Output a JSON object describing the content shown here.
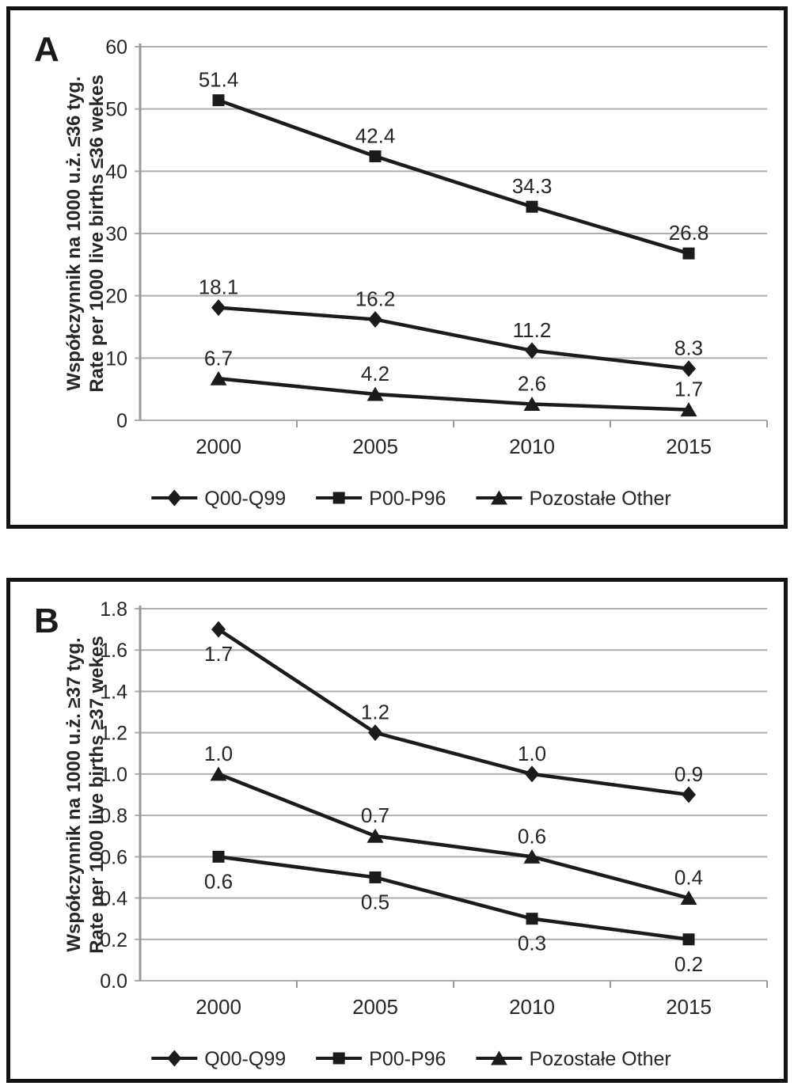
{
  "figure": {
    "description_labels": {
      "panel_a": "A",
      "panel_b": "B"
    }
  },
  "theme": {
    "background": "#ffffff",
    "panel_border": "#141414",
    "grid_color": "#aeaeae",
    "axis_color": "#9a9a9a",
    "series_color": "#1b1b1b",
    "text_color": "#262626"
  },
  "chart_data": [
    {
      "type": "line",
      "panel_label": "A",
      "title": "",
      "xlabel": "",
      "ylabel_lines": [
        "Współczynnik na 1000 u.ż. ≤36 tyg.",
        "Rate per 1000 live births ≤36 wekes"
      ],
      "categories": [
        "2000",
        "2005",
        "2010",
        "2015"
      ],
      "series": [
        {
          "name": "Q00-Q99",
          "marker": "diamond",
          "values": [
            18.1,
            16.2,
            11.2,
            8.3
          ],
          "labels": [
            "18.1",
            "16.2",
            "11.2",
            "8.3"
          ],
          "label_positions": [
            "above",
            "above",
            "above",
            "above"
          ]
        },
        {
          "name": "P00-P96",
          "marker": "square",
          "values": [
            51.4,
            42.4,
            34.3,
            26.8
          ],
          "labels": [
            "51.4",
            "42.4",
            "34.3",
            "26.8"
          ],
          "label_positions": [
            "above",
            "above",
            "above",
            "above"
          ]
        },
        {
          "name": "Pozostałe Other",
          "marker": "triangle",
          "values": [
            6.7,
            4.2,
            2.6,
            1.7
          ],
          "labels": [
            "6.7",
            "4.2",
            "2.6",
            "1.7"
          ],
          "label_positions": [
            "above",
            "above",
            "above",
            "above"
          ]
        }
      ],
      "ylim": [
        0,
        60
      ],
      "ytick_step": 10,
      "ytick_labels": [
        "0",
        "10",
        "20",
        "30",
        "40",
        "50",
        "60"
      ],
      "grid": true,
      "legend_position": "bottom"
    },
    {
      "type": "line",
      "panel_label": "B",
      "title": "",
      "xlabel": "",
      "ylabel_lines": [
        "Współczynnik na 1000 u.ż. ≥37 tyg.",
        "Rate per 1000 live births ≥37 wekes"
      ],
      "categories": [
        "2000",
        "2005",
        "2010",
        "2015"
      ],
      "series": [
        {
          "name": "Q00-Q99",
          "marker": "diamond",
          "values": [
            1.7,
            1.2,
            1.0,
            0.9
          ],
          "labels": [
            "1.7",
            "1.2",
            "1.0",
            "0.9"
          ],
          "label_positions": [
            "below",
            "above",
            "above",
            "above"
          ]
        },
        {
          "name": "P00-P96",
          "marker": "square",
          "values": [
            0.6,
            0.5,
            0.3,
            0.2
          ],
          "labels": [
            "0.6",
            "0.5",
            "0.3",
            "0.2"
          ],
          "label_positions": [
            "below",
            "below",
            "below",
            "below"
          ]
        },
        {
          "name": "Pozostałe Other",
          "marker": "triangle",
          "values": [
            1.0,
            0.7,
            0.6,
            0.4
          ],
          "labels": [
            "1.0",
            "0.7",
            "0.6",
            "0.4"
          ],
          "label_positions": [
            "above",
            "above",
            "above",
            "above"
          ]
        }
      ],
      "ylim": [
        0,
        1.8
      ],
      "ytick_step": 0.2,
      "ytick_labels": [
        "0.0",
        "0.2",
        "0.4",
        "0.6",
        "0.8",
        "1.0",
        "1.2",
        "1.4",
        "1.6",
        "1.8"
      ],
      "grid": true,
      "legend_position": "bottom"
    }
  ]
}
